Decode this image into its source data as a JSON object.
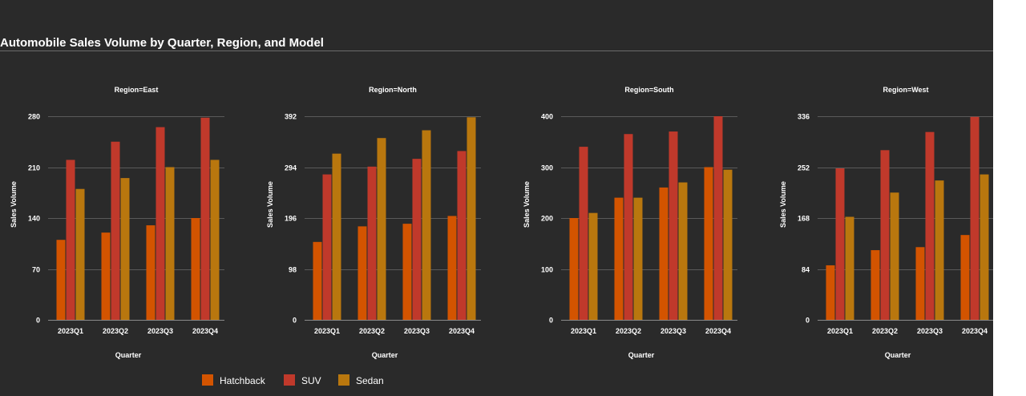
{
  "colors": {
    "background": "#2a2a2a",
    "text": "#ffffff",
    "grid": "#5a5a5a",
    "axis": "#8a8a8a",
    "Hatchback": "#d35400",
    "SUV": "#c0392b",
    "Sedan": "#b9770e"
  },
  "chart_data": {
    "type": "bar",
    "title": "Automobile Sales Volume by Quarter, Region, and Model",
    "xlabel": "Quarter",
    "ylabel": "Sales Volume",
    "categories": [
      "2023Q1",
      "2023Q2",
      "2023Q3",
      "2023Q4"
    ],
    "legend": {
      "placement": "bottom",
      "entries": [
        "Hatchback",
        "SUV",
        "Sedan"
      ]
    },
    "grid": true,
    "facets": [
      {
        "label": "Region=East",
        "ylim": [
          0,
          280
        ],
        "yticks": [
          0,
          70,
          140,
          210,
          280
        ],
        "series": [
          {
            "name": "Hatchback",
            "values": [
              110,
              120,
              130,
              140
            ]
          },
          {
            "name": "SUV",
            "values": [
              220,
              245,
              265,
              278
            ]
          },
          {
            "name": "Sedan",
            "values": [
              180,
              195,
              210,
              220
            ]
          }
        ]
      },
      {
        "label": "Region=North",
        "ylim": [
          0,
          392
        ],
        "yticks": [
          0,
          98,
          196,
          294,
          392
        ],
        "series": [
          {
            "name": "Hatchback",
            "values": [
              150,
              180,
              185,
              200
            ]
          },
          {
            "name": "SUV",
            "values": [
              280,
              295,
              310,
              325
            ]
          },
          {
            "name": "Sedan",
            "values": [
              320,
              350,
              365,
              390
            ]
          }
        ]
      },
      {
        "label": "Region=South",
        "ylim": [
          0,
          400
        ],
        "yticks": [
          0,
          100,
          200,
          300,
          400
        ],
        "series": [
          {
            "name": "Hatchback",
            "values": [
              200,
              240,
              260,
              300
            ]
          },
          {
            "name": "SUV",
            "values": [
              340,
              365,
              370,
              400
            ]
          },
          {
            "name": "Sedan",
            "values": [
              210,
              240,
              270,
              295
            ]
          }
        ]
      },
      {
        "label": "Region=West",
        "ylim": [
          0,
          336
        ],
        "yticks": [
          0,
          84,
          168,
          252,
          336
        ],
        "series": [
          {
            "name": "Hatchback",
            "values": [
              90,
              115,
              120,
              140
            ]
          },
          {
            "name": "SUV",
            "values": [
              250,
              280,
              310,
              335
            ]
          },
          {
            "name": "Sedan",
            "values": [
              170,
              210,
              230,
              240
            ]
          }
        ]
      }
    ]
  }
}
